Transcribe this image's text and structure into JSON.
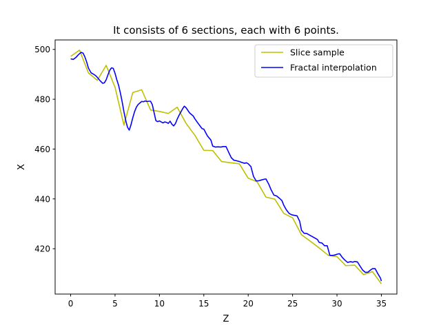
{
  "chart_data": {
    "type": "line",
    "title": "It consists of 6 sections, each with 6 points.",
    "xlabel": "Z",
    "ylabel": "X",
    "xlim": [
      -1.75,
      36.75
    ],
    "ylim": [
      401.8,
      503.8
    ],
    "xticks": [
      0,
      5,
      10,
      15,
      20,
      25,
      30,
      35
    ],
    "yticks": [
      420,
      440,
      460,
      480,
      500
    ],
    "grid": false,
    "legend_position": "top-right",
    "series": [
      {
        "name": "Slice sample",
        "color": "#bfbf00",
        "x": [
          0,
          1,
          2,
          3,
          4,
          5,
          6,
          7,
          8,
          9,
          10,
          11,
          12,
          13,
          14,
          15,
          16,
          17,
          18,
          19,
          20,
          21,
          22,
          23,
          24,
          25,
          26,
          27,
          28,
          29,
          30,
          31,
          32,
          33,
          34,
          35
        ],
        "y": [
          497.2,
          499.7,
          490.6,
          487.6,
          493.6,
          484.8,
          469.6,
          482.7,
          483.8,
          475.7,
          475.1,
          474.3,
          476.8,
          470.3,
          465.5,
          459.5,
          459.4,
          455.0,
          454.5,
          454.1,
          448.3,
          446.9,
          440.7,
          439.9,
          434.2,
          432.4,
          425.6,
          423.0,
          420.3,
          417.4,
          416.8,
          413.2,
          413.4,
          409.6,
          410.8,
          405.9
        ]
      },
      {
        "name": "Fractal interpolation",
        "color": "#0000ff",
        "x": [
          0,
          0.3,
          0.6,
          0.8,
          1.0,
          1.2,
          1.4,
          1.6,
          1.8,
          2.0,
          2.3,
          2.6,
          2.8,
          3.0,
          3.3,
          3.6,
          3.8,
          4.0,
          4.2,
          4.4,
          4.6,
          4.8,
          5.0,
          5.2,
          5.4,
          5.6,
          5.8,
          6.0,
          6.2,
          6.4,
          6.6,
          6.8,
          7.0,
          7.2,
          7.4,
          7.6,
          7.8,
          8.0,
          8.2,
          8.4,
          8.6,
          8.8,
          9.0,
          9.2,
          9.4,
          9.6,
          9.8,
          10.0,
          10.2,
          10.4,
          10.6,
          10.8,
          11.0,
          11.2,
          11.4,
          11.6,
          11.8,
          12.0,
          12.2,
          12.4,
          12.6,
          12.8,
          13.0,
          13.4,
          13.8,
          14.0,
          14.4,
          14.8,
          15.0,
          15.4,
          15.8,
          16.0,
          16.3,
          16.6,
          16.9,
          17.2,
          17.5,
          17.8,
          18.1,
          18.4,
          18.7,
          19.0,
          19.3,
          19.6,
          19.8,
          20.0,
          20.3,
          20.6,
          20.9,
          21.2,
          21.5,
          21.8,
          22.0,
          22.3,
          22.6,
          22.9,
          23.2,
          23.5,
          23.8,
          24.0,
          24.3,
          24.6,
          24.9,
          25.2,
          25.5,
          25.8,
          26.0,
          26.3,
          26.6,
          26.9,
          27.2,
          27.5,
          27.8,
          28.0,
          28.3,
          28.6,
          28.9,
          29.2,
          29.5,
          29.8,
          30.0,
          30.3,
          30.6,
          30.9,
          31.2,
          31.5,
          31.8,
          32.0,
          32.3,
          32.6,
          32.9,
          33.2,
          33.5,
          33.8,
          34.0,
          34.3,
          34.6,
          34.9,
          35.0
        ],
        "y": [
          496.2,
          496.0,
          496.8,
          497.6,
          498.3,
          498.8,
          498.5,
          497.0,
          495.0,
          492.5,
          490.6,
          490.0,
          489.5,
          488.8,
          487.5,
          486.4,
          486.6,
          487.8,
          489.8,
          491.6,
          492.6,
          492.4,
          490.4,
          487.8,
          485.6,
          482.5,
          479.0,
          475.0,
          471.5,
          468.8,
          467.6,
          469.8,
          472.6,
          475.0,
          476.8,
          477.9,
          478.5,
          479.1,
          479.0,
          479.3,
          479.1,
          479.2,
          479.2,
          477.8,
          474.6,
          471.4,
          471.0,
          471.3,
          470.9,
          470.5,
          470.9,
          470.7,
          470.3,
          471.2,
          470.0,
          469.3,
          470.2,
          472.0,
          473.5,
          474.8,
          476.1,
          477.2,
          476.6,
          474.5,
          473.3,
          472.1,
          470.1,
          468.2,
          468.0,
          465.3,
          463.6,
          461.2,
          460.8,
          460.9,
          460.8,
          461.0,
          461.0,
          458.7,
          456.5,
          455.5,
          455.3,
          455.0,
          454.6,
          454.3,
          454.5,
          454.1,
          453.0,
          449.0,
          447.2,
          447.3,
          447.6,
          447.9,
          448.0,
          446.0,
          443.5,
          441.5,
          441.2,
          440.3,
          439.3,
          437.5,
          435.6,
          434.2,
          433.6,
          433.4,
          433.2,
          431.0,
          427.4,
          426.2,
          426.1,
          425.5,
          424.9,
          424.3,
          423.7,
          422.5,
          422.3,
          421.2,
          421.2,
          417.3,
          417.3,
          417.5,
          417.8,
          418.0,
          416.5,
          415.4,
          414.5,
          414.8,
          414.6,
          414.9,
          414.7,
          413.0,
          411.4,
          410.5,
          410.6,
          411.5,
          412.0,
          412.0,
          410.0,
          408.2,
          407.0
        ]
      }
    ]
  }
}
